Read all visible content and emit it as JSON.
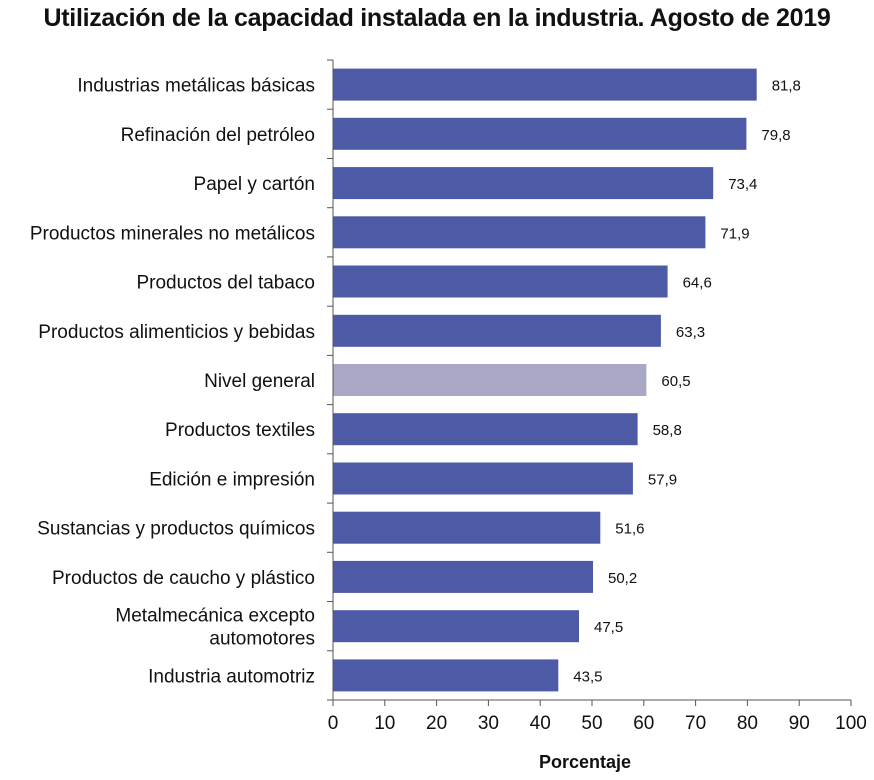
{
  "chart_data": {
    "type": "bar",
    "orientation": "horizontal",
    "title": "Utilización de la capacidad instalada en la industria. Agosto de 2019",
    "xlabel": "Porcentaje",
    "ylabel": "",
    "xlim": [
      0,
      100
    ],
    "xticks": [
      0,
      10,
      20,
      30,
      40,
      50,
      60,
      70,
      80,
      90,
      100
    ],
    "categories": [
      [
        "Industrias metálicas básicas"
      ],
      [
        "Refinación del petróleo"
      ],
      [
        "Papel y cartón"
      ],
      [
        "Productos minerales no metálicos"
      ],
      [
        "Productos del tabaco"
      ],
      [
        "Productos alimenticios y bebidas"
      ],
      [
        "Nivel general"
      ],
      [
        "Productos textiles"
      ],
      [
        "Edición e impresión"
      ],
      [
        "Sustancias y productos químicos"
      ],
      [
        "Productos de caucho y plástico"
      ],
      [
        "Metalmecánica excepto",
        "automotores"
      ],
      [
        "Industria automotriz"
      ]
    ],
    "values": [
      81.8,
      79.8,
      73.4,
      71.9,
      64.6,
      63.3,
      60.5,
      58.8,
      57.9,
      51.6,
      50.2,
      47.5,
      43.5
    ],
    "value_labels": [
      "81,8",
      "79,8",
      "73,4",
      "71,9",
      "64,6",
      "63,3",
      "60,5",
      "58,8",
      "57,9",
      "51,6",
      "50,2",
      "47,5",
      "43,5"
    ],
    "highlighted_category": "Nivel general",
    "colors": {
      "bar": "#4d5aa5",
      "highlight": "#a9a8c7",
      "axis": "#555555"
    },
    "grid": false,
    "legend": "none"
  }
}
